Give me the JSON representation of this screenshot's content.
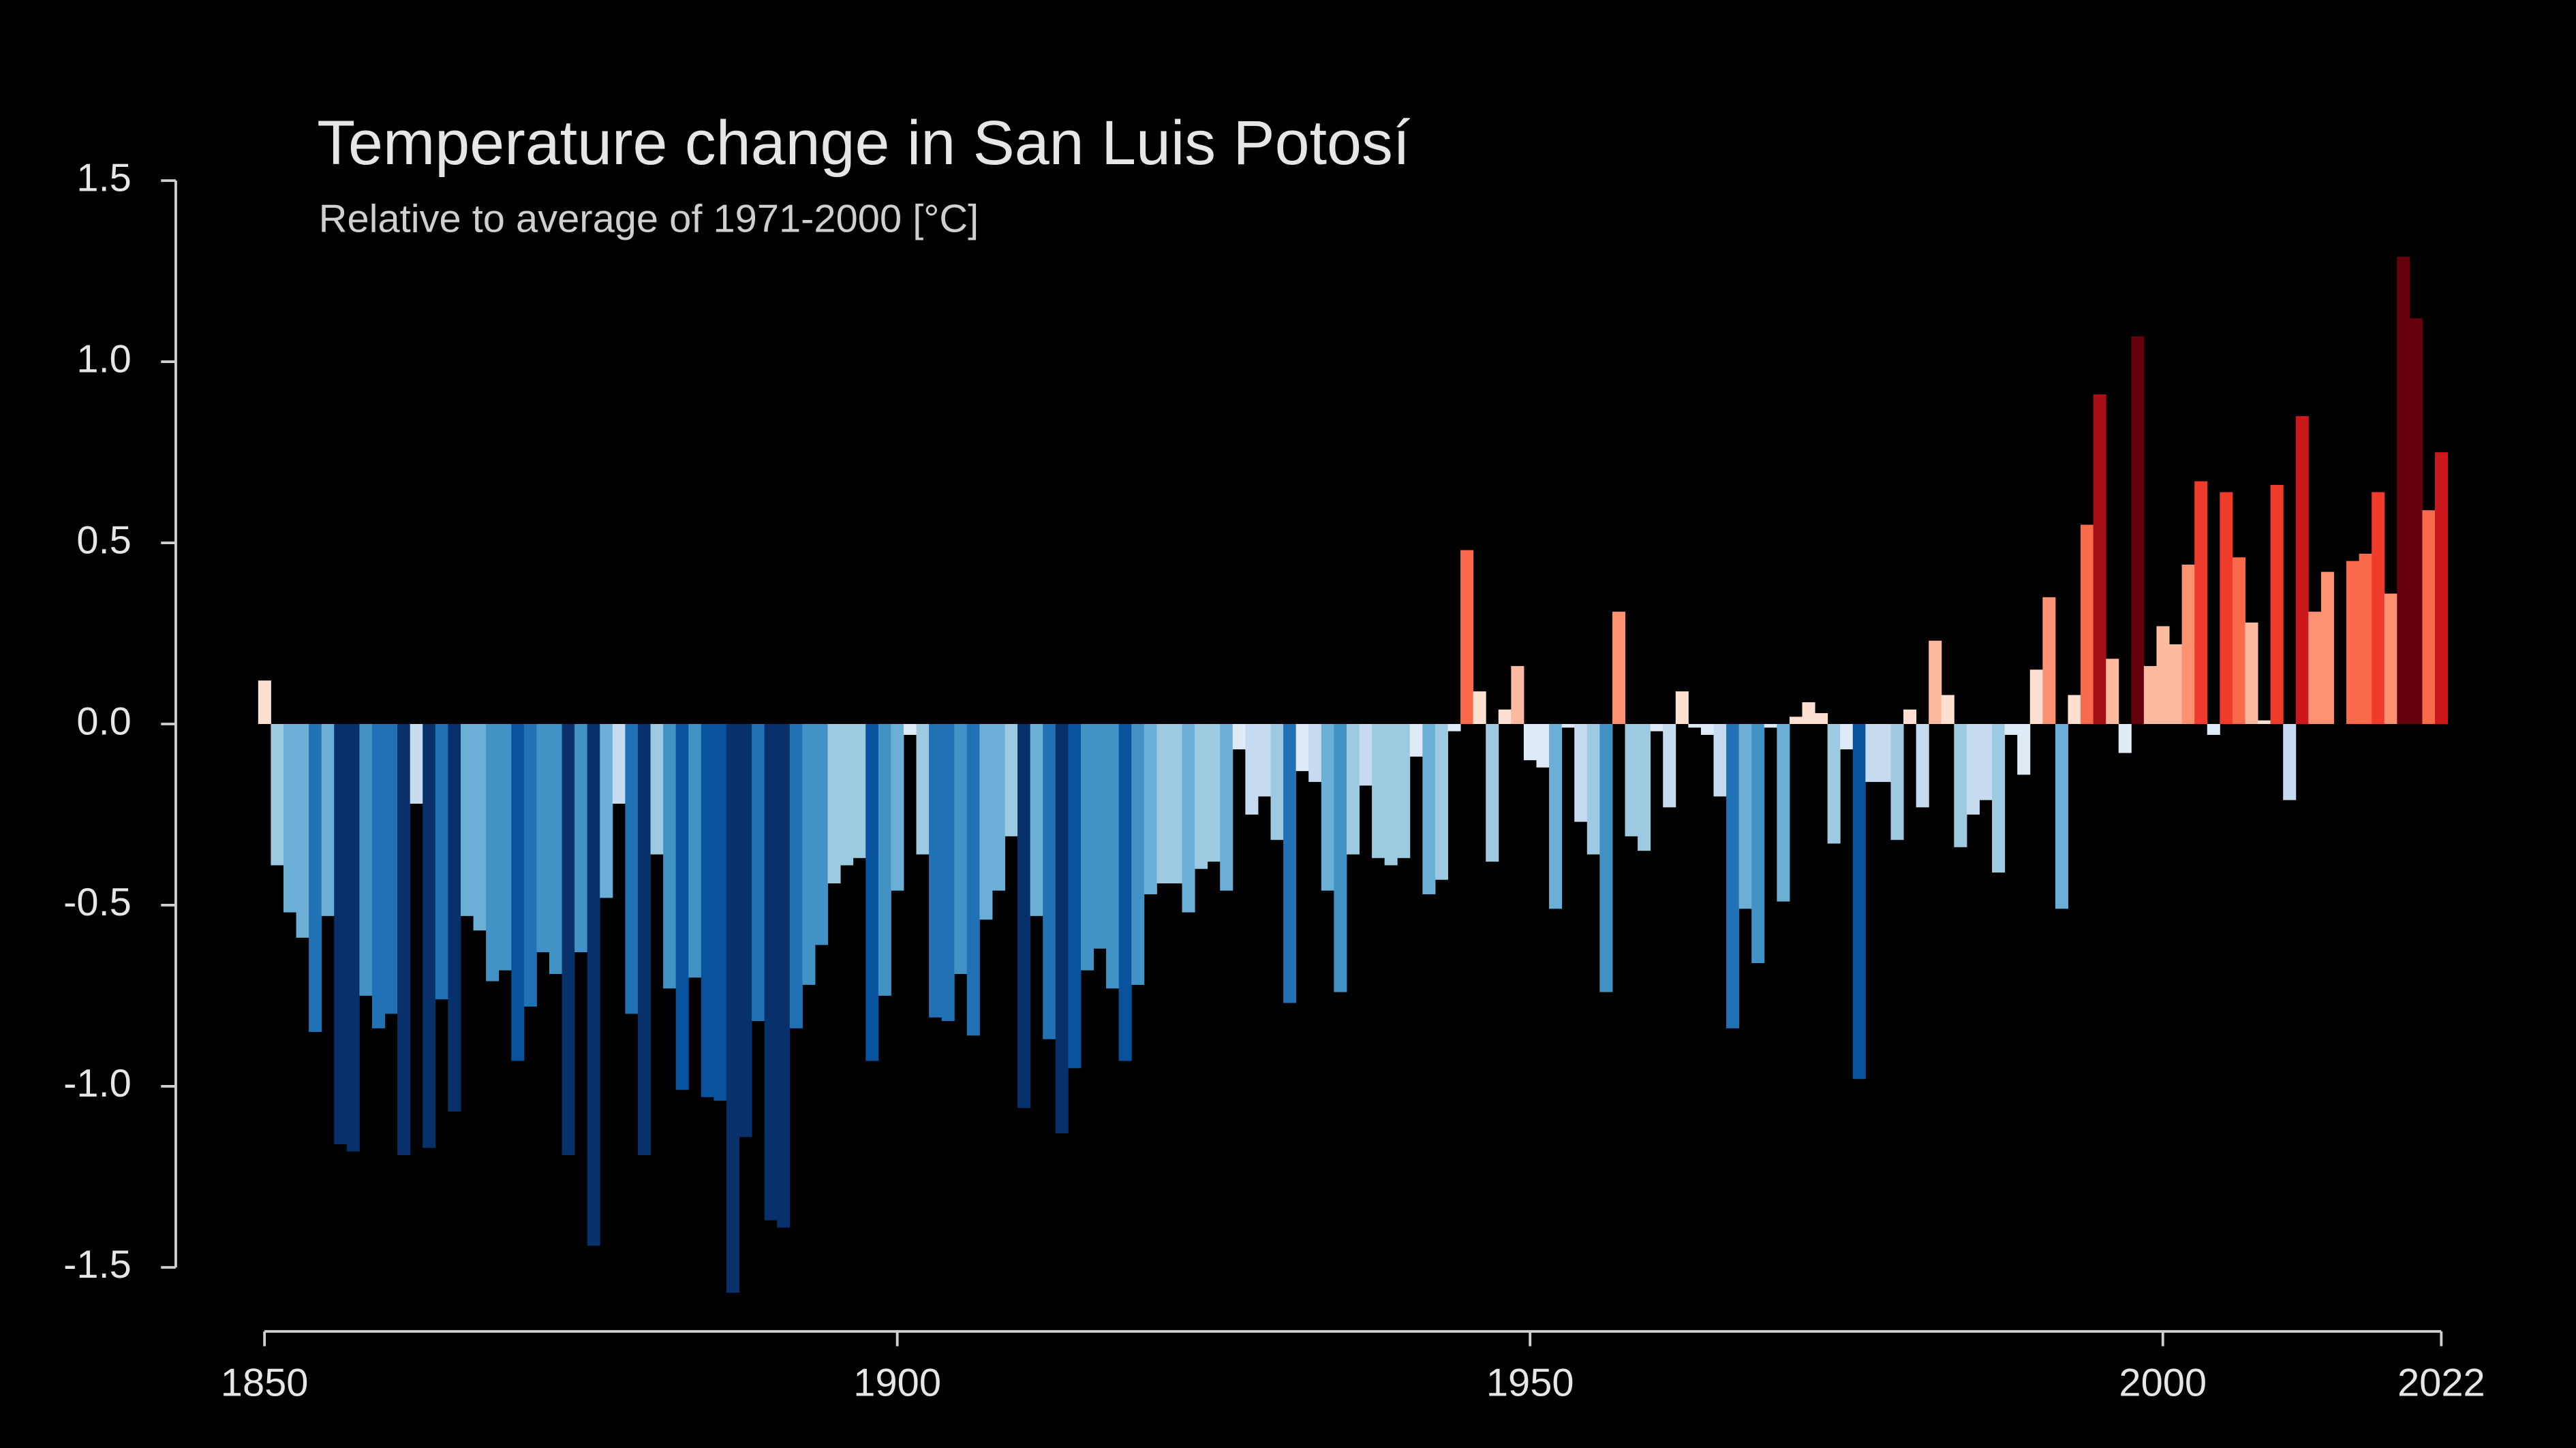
{
  "chart_data": {
    "type": "bar",
    "title": "Temperature change in San Luis Potosí",
    "subtitle": "Relative to average of 1971-2000  [°C]",
    "x": [
      1850,
      1851,
      1852,
      1853,
      1854,
      1855,
      1856,
      1857,
      1858,
      1859,
      1860,
      1861,
      1862,
      1863,
      1864,
      1865,
      1866,
      1867,
      1868,
      1869,
      1870,
      1871,
      1872,
      1873,
      1874,
      1875,
      1876,
      1877,
      1878,
      1879,
      1880,
      1881,
      1882,
      1883,
      1884,
      1885,
      1886,
      1887,
      1888,
      1889,
      1890,
      1891,
      1892,
      1893,
      1894,
      1895,
      1896,
      1897,
      1898,
      1899,
      1900,
      1901,
      1902,
      1903,
      1904,
      1905,
      1906,
      1907,
      1908,
      1909,
      1910,
      1911,
      1912,
      1913,
      1914,
      1915,
      1916,
      1917,
      1918,
      1919,
      1920,
      1921,
      1922,
      1923,
      1924,
      1925,
      1926,
      1927,
      1928,
      1929,
      1930,
      1931,
      1932,
      1933,
      1934,
      1935,
      1936,
      1937,
      1938,
      1939,
      1940,
      1941,
      1942,
      1943,
      1944,
      1945,
      1946,
      1947,
      1948,
      1949,
      1950,
      1951,
      1952,
      1953,
      1954,
      1955,
      1956,
      1957,
      1958,
      1959,
      1960,
      1961,
      1962,
      1963,
      1964,
      1965,
      1966,
      1967,
      1968,
      1969,
      1970,
      1971,
      1972,
      1973,
      1974,
      1975,
      1976,
      1977,
      1978,
      1979,
      1980,
      1981,
      1982,
      1983,
      1984,
      1985,
      1986,
      1987,
      1988,
      1989,
      1990,
      1991,
      1992,
      1993,
      1994,
      1995,
      1996,
      1997,
      1998,
      1999,
      2000,
      2001,
      2002,
      2003,
      2004,
      2005,
      2006,
      2007,
      2008,
      2009,
      2010,
      2011,
      2012,
      2013,
      2014,
      2015,
      2016,
      2017,
      2018,
      2019,
      2020,
      2021,
      2022
    ],
    "values": [
      0.12,
      -0.39,
      -0.52,
      -0.59,
      -0.85,
      -0.53,
      -1.16,
      -1.18,
      -0.75,
      -0.84,
      -0.8,
      -1.19,
      -0.22,
      -1.17,
      -0.76,
      -1.07,
      -0.53,
      -0.57,
      -0.71,
      -0.68,
      -0.93,
      -0.78,
      -0.63,
      -0.69,
      -1.19,
      -0.63,
      -1.44,
      -0.48,
      -0.22,
      -0.8,
      -1.19,
      -0.36,
      -0.73,
      -1.01,
      -0.7,
      -1.03,
      -1.04,
      -1.57,
      -1.14,
      -0.82,
      -1.37,
      -1.39,
      -0.84,
      -0.72,
      -0.61,
      -0.44,
      -0.39,
      -0.37,
      -0.93,
      -0.75,
      -0.46,
      -0.03,
      -0.36,
      -0.81,
      -0.82,
      -0.69,
      -0.86,
      -0.54,
      -0.46,
      -0.31,
      -1.06,
      -0.53,
      -0.87,
      -1.13,
      -0.95,
      -0.68,
      -0.62,
      -0.73,
      -0.93,
      -0.72,
      -0.47,
      -0.44,
      -0.44,
      -0.52,
      -0.4,
      -0.38,
      -0.46,
      -0.07,
      -0.25,
      -0.2,
      -0.32,
      -0.77,
      -0.13,
      -0.16,
      -0.46,
      -0.74,
      -0.36,
      -0.17,
      -0.37,
      -0.39,
      -0.37,
      -0.09,
      -0.47,
      -0.43,
      -0.02,
      0.48,
      0.09,
      -0.38,
      0.04,
      0.16,
      -0.1,
      -0.12,
      -0.51,
      -0.01,
      -0.27,
      -0.36,
      -0.74,
      0.31,
      -0.31,
      -0.35,
      -0.02,
      -0.23,
      0.09,
      -0.01,
      -0.03,
      -0.2,
      -0.84,
      -0.51,
      -0.66,
      -0.01,
      -0.49,
      0.02,
      0.06,
      0.03,
      -0.33,
      -0.07,
      -0.98,
      -0.16,
      -0.16,
      -0.32,
      0.04,
      -0.23,
      0.23,
      0.08,
      -0.34,
      -0.25,
      -0.21,
      -0.41,
      -0.03,
      -0.14,
      0.15,
      0.35,
      -0.51,
      0.08,
      0.55,
      0.91,
      0.18,
      -0.08,
      1.07,
      0.16,
      0.27,
      0.22,
      0.44,
      0.67,
      -0.03,
      0.64,
      0.46,
      0.28,
      0.01,
      0.66,
      -0.21,
      0.85,
      0.31,
      0.42,
      0.0,
      0.45,
      0.47,
      0.64,
      0.36,
      1.29,
      1.12,
      0.59,
      0.75
    ],
    "palette": [
      "#08306b",
      "#08306b",
      "#08306b",
      "#08519c",
      "#2171b5",
      "#4292c6",
      "#6baed6",
      "#9ecae1",
      "#c6dbef",
      "#deebf7",
      "#fee0d2",
      "#fcbba1",
      "#fc9272",
      "#fb6a4a",
      "#ef3b2c",
      "#cb181d",
      "#a50f15",
      "#67000d",
      "#67000d",
      "#67000d"
    ],
    "xlim": [
      1850,
      2022
    ],
    "xticks": [
      1850,
      1900,
      1950,
      2000,
      2022
    ],
    "ylim": [
      -1.5,
      1.5
    ],
    "yticks": [
      1.5,
      {
        "value": 1,
        "label": "1.0"
      },
      0.5,
      {
        "value": 0,
        "label": "0.0"
      },
      -0.5,
      {
        "value": -1,
        "label": "-1.0"
      },
      -1.5
    ],
    "grid": false
  }
}
